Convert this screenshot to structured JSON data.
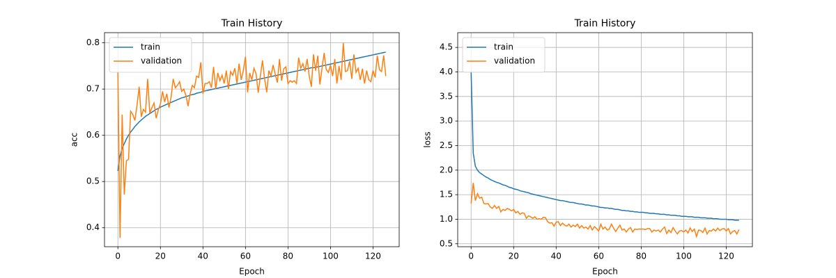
{
  "chart_data": [
    {
      "type": "line",
      "title": "Train History",
      "x_label": "Epoch",
      "y_label": "acc",
      "x": [
        0,
        1,
        2,
        3,
        4,
        5,
        6,
        7,
        8,
        9,
        10,
        11,
        12,
        13,
        14,
        15,
        16,
        17,
        18,
        19,
        20,
        21,
        22,
        23,
        24,
        25,
        26,
        27,
        28,
        29,
        30,
        31,
        32,
        33,
        34,
        35,
        36,
        37,
        38,
        39,
        40,
        41,
        42,
        43,
        44,
        45,
        46,
        47,
        48,
        49,
        50,
        51,
        52,
        53,
        54,
        55,
        56,
        57,
        58,
        59,
        60,
        61,
        62,
        63,
        64,
        65,
        66,
        67,
        68,
        69,
        70,
        71,
        72,
        73,
        74,
        75,
        76,
        77,
        78,
        79,
        80,
        81,
        82,
        83,
        84,
        85,
        86,
        87,
        88,
        89,
        90,
        91,
        92,
        93,
        94,
        95,
        96,
        97,
        98,
        99,
        100,
        101,
        102,
        103,
        104,
        105,
        106,
        107,
        108,
        109,
        110,
        111,
        112,
        113,
        114,
        115,
        116,
        117,
        118,
        119,
        120,
        121,
        122,
        123,
        124,
        125,
        126
      ],
      "series": [
        {
          "name": "train",
          "color": "#1f77b4",
          "values": [
            0.523,
            0.555,
            0.572,
            0.582,
            0.592,
            0.6,
            0.607,
            0.613,
            0.619,
            0.624,
            0.629,
            0.633,
            0.637,
            0.641,
            0.644,
            0.647,
            0.65,
            0.653,
            0.656,
            0.658,
            0.661,
            0.663,
            0.665,
            0.667,
            0.669,
            0.671,
            0.673,
            0.675,
            0.677,
            0.679,
            0.681,
            0.682,
            0.684,
            0.685,
            0.687,
            0.688,
            0.689,
            0.691,
            0.692,
            0.693,
            0.695,
            0.696,
            0.697,
            0.698,
            0.699,
            0.7,
            0.701,
            0.702,
            0.703,
            0.704,
            0.705,
            0.706,
            0.707,
            0.708,
            0.709,
            0.71,
            0.711,
            0.712,
            0.713,
            0.714,
            0.715,
            0.716,
            0.717,
            0.718,
            0.719,
            0.72,
            0.721,
            0.722,
            0.723,
            0.724,
            0.725,
            0.726,
            0.727,
            0.728,
            0.729,
            0.73,
            0.731,
            0.732,
            0.733,
            0.734,
            0.735,
            0.736,
            0.737,
            0.738,
            0.739,
            0.74,
            0.741,
            0.742,
            0.743,
            0.744,
            0.745,
            0.746,
            0.746,
            0.747,
            0.748,
            0.749,
            0.75,
            0.751,
            0.752,
            0.753,
            0.754,
            0.755,
            0.756,
            0.757,
            0.758,
            0.759,
            0.76,
            0.761,
            0.762,
            0.763,
            0.764,
            0.765,
            0.766,
            0.767,
            0.768,
            0.769,
            0.77,
            0.771,
            0.772,
            0.773,
            0.774,
            0.775,
            0.776,
            0.777,
            0.778,
            0.779,
            0.78
          ]
        },
        {
          "name": "validation",
          "color": "#ff7f0e",
          "values": [
            0.738,
            0.378,
            0.645,
            0.472,
            0.545,
            0.548,
            0.652,
            0.645,
            0.632,
            0.665,
            0.705,
            0.64,
            0.656,
            0.65,
            0.722,
            0.648,
            0.66,
            0.67,
            0.637,
            0.655,
            0.668,
            0.695,
            0.672,
            0.69,
            0.66,
            0.682,
            0.722,
            0.703,
            0.708,
            0.716,
            0.695,
            0.7,
            0.686,
            0.663,
            0.69,
            0.708,
            0.703,
            0.728,
            0.725,
            0.758,
            0.69,
            0.712,
            0.712,
            0.716,
            0.703,
            0.748,
            0.7,
            0.735,
            0.718,
            0.73,
            0.712,
            0.74,
            0.7,
            0.738,
            0.73,
            0.745,
            0.712,
            0.755,
            0.72,
            0.74,
            0.77,
            0.693,
            0.735,
            0.72,
            0.745,
            0.733,
            0.692,
            0.728,
            0.762,
            0.722,
            0.693,
            0.74,
            0.728,
            0.752,
            0.732,
            0.714,
            0.765,
            0.718,
            0.744,
            0.748,
            0.712,
            0.718,
            0.715,
            0.718,
            0.712,
            0.768,
            0.745,
            0.755,
            0.738,
            0.765,
            0.728,
            0.705,
            0.775,
            0.74,
            0.772,
            0.71,
            0.745,
            0.778,
            0.742,
            0.736,
            0.752,
            0.728,
            0.765,
            0.712,
            0.75,
            0.72,
            0.8,
            0.738,
            0.74,
            0.76,
            0.722,
            0.775,
            0.736,
            0.745,
            0.72,
            0.744,
            0.712,
            0.74,
            0.72,
            0.716,
            0.74,
            0.725,
            0.772,
            0.742,
            0.738,
            0.773,
            0.728
          ]
        }
      ],
      "xlim": [
        -6.3,
        132.3
      ],
      "ylim": [
        0.359,
        0.822
      ],
      "xticks": [
        0,
        20,
        40,
        60,
        80,
        100,
        120
      ],
      "yticks": [
        0.4,
        0.5,
        0.6,
        0.7,
        0.8
      ],
      "grid": true,
      "legend": "upper-left"
    },
    {
      "type": "line",
      "title": "Train History",
      "x_label": "Epoch",
      "y_label": "loss",
      "x": [
        0,
        1,
        2,
        3,
        4,
        5,
        6,
        7,
        8,
        9,
        10,
        11,
        12,
        13,
        14,
        15,
        16,
        17,
        18,
        19,
        20,
        21,
        22,
        23,
        24,
        25,
        26,
        27,
        28,
        29,
        30,
        31,
        32,
        33,
        34,
        35,
        36,
        37,
        38,
        39,
        40,
        41,
        42,
        43,
        44,
        45,
        46,
        47,
        48,
        49,
        50,
        51,
        52,
        53,
        54,
        55,
        56,
        57,
        58,
        59,
        60,
        61,
        62,
        63,
        64,
        65,
        66,
        67,
        68,
        69,
        70,
        71,
        72,
        73,
        74,
        75,
        76,
        77,
        78,
        79,
        80,
        81,
        82,
        83,
        84,
        85,
        86,
        87,
        88,
        89,
        90,
        91,
        92,
        93,
        94,
        95,
        96,
        97,
        98,
        99,
        100,
        101,
        102,
        103,
        104,
        105,
        106,
        107,
        108,
        109,
        110,
        111,
        112,
        113,
        114,
        115,
        116,
        117,
        118,
        119,
        120,
        121,
        122,
        123,
        124,
        125,
        126
      ],
      "series": [
        {
          "name": "train",
          "color": "#1f77b4",
          "values": [
            4.02,
            2.35,
            2.08,
            2.0,
            1.95,
            1.92,
            1.89,
            1.86,
            1.84,
            1.81,
            1.79,
            1.77,
            1.75,
            1.74,
            1.72,
            1.7,
            1.69,
            1.67,
            1.65,
            1.64,
            1.62,
            1.61,
            1.6,
            1.58,
            1.57,
            1.56,
            1.55,
            1.54,
            1.52,
            1.51,
            1.5,
            1.49,
            1.48,
            1.47,
            1.46,
            1.45,
            1.44,
            1.43,
            1.42,
            1.41,
            1.4,
            1.39,
            1.38,
            1.38,
            1.37,
            1.36,
            1.35,
            1.34,
            1.34,
            1.33,
            1.32,
            1.31,
            1.31,
            1.3,
            1.29,
            1.29,
            1.28,
            1.27,
            1.27,
            1.26,
            1.25,
            1.24,
            1.24,
            1.23,
            1.23,
            1.22,
            1.22,
            1.21,
            1.2,
            1.2,
            1.19,
            1.18,
            1.18,
            1.17,
            1.17,
            1.16,
            1.16,
            1.15,
            1.15,
            1.14,
            1.14,
            1.14,
            1.13,
            1.13,
            1.12,
            1.12,
            1.12,
            1.11,
            1.11,
            1.1,
            1.1,
            1.1,
            1.09,
            1.09,
            1.08,
            1.08,
            1.08,
            1.07,
            1.07,
            1.06,
            1.06,
            1.06,
            1.05,
            1.05,
            1.05,
            1.04,
            1.04,
            1.04,
            1.03,
            1.03,
            1.03,
            1.02,
            1.02,
            1.02,
            1.01,
            1.01,
            1.01,
            1.0,
            1.0,
            1.0,
            1.0,
            0.99,
            0.99,
            0.99,
            0.98,
            0.98,
            0.98
          ]
        },
        {
          "name": "validation",
          "color": "#ff7f0e",
          "values": [
            1.32,
            1.74,
            1.38,
            1.52,
            1.43,
            1.45,
            1.32,
            1.31,
            1.32,
            1.25,
            1.22,
            1.28,
            1.22,
            1.26,
            1.15,
            1.2,
            1.18,
            1.22,
            1.2,
            1.17,
            1.2,
            1.13,
            1.16,
            1.1,
            1.13,
            1.12,
            1.02,
            1.07,
            1.05,
            1.02,
            1.05,
            1.0,
            1.01,
            1.0,
            1.04,
            1.03,
            0.95,
            0.92,
            0.93,
            0.86,
            0.94,
            0.95,
            0.87,
            0.92,
            0.88,
            0.86,
            0.9,
            0.84,
            0.88,
            0.85,
            0.9,
            0.82,
            0.87,
            0.82,
            0.84,
            0.8,
            0.87,
            0.78,
            0.85,
            0.81,
            0.76,
            0.9,
            0.8,
            0.84,
            0.78,
            0.8,
            0.9,
            0.82,
            0.75,
            0.82,
            0.88,
            0.78,
            0.8,
            0.74,
            0.8,
            0.83,
            0.74,
            0.8,
            0.79,
            0.8,
            0.8,
            0.8,
            0.79,
            0.81,
            0.81,
            0.74,
            0.78,
            0.76,
            0.78,
            0.74,
            0.8,
            0.84,
            0.71,
            0.78,
            0.73,
            0.83,
            0.76,
            0.7,
            0.76,
            0.77,
            0.74,
            0.78,
            0.72,
            0.82,
            0.75,
            0.8,
            0.65,
            0.78,
            0.77,
            0.73,
            0.82,
            0.7,
            0.77,
            0.76,
            0.8,
            0.76,
            0.82,
            0.77,
            0.8,
            0.81,
            0.76,
            0.81,
            0.7,
            0.75,
            0.77,
            0.7,
            0.79
          ]
        }
      ],
      "xlim": [
        -6.3,
        132.3
      ],
      "ylim": [
        0.44,
        4.8
      ],
      "xticks": [
        0,
        20,
        40,
        60,
        80,
        100,
        120
      ],
      "yticks": [
        0.5,
        {
          "value": 1,
          "label": "1.0"
        },
        1.5,
        {
          "value": 2,
          "label": "2.0"
        },
        2.5,
        {
          "value": 3,
          "label": "3.0"
        },
        3.5,
        {
          "value": 4,
          "label": "4.0"
        },
        4.5
      ],
      "grid": true,
      "legend": "upper-left"
    }
  ]
}
